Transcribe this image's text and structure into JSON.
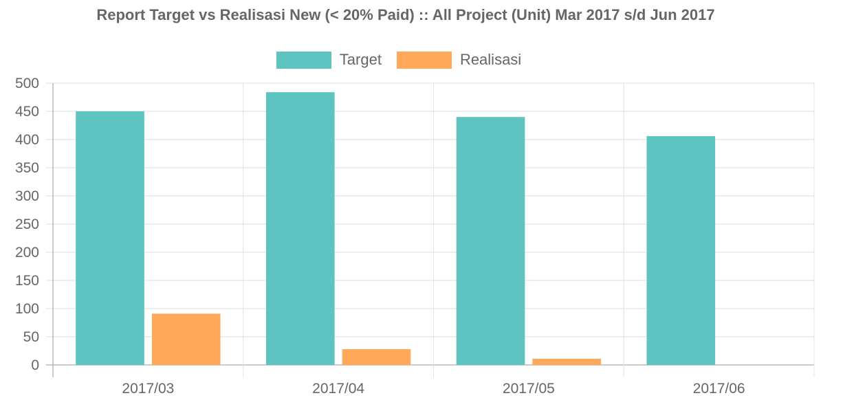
{
  "chart_data": {
    "type": "bar",
    "title": "Report Target vs Realisasi New (< 20% Paid) :: All Project (Unit) Mar 2017 s/d Jun 2017",
    "categories": [
      "2017/03",
      "2017/04",
      "2017/05",
      "2017/06"
    ],
    "series": [
      {
        "name": "Target",
        "values": [
          450,
          484,
          440,
          406
        ],
        "color": "#5ec4c1"
      },
      {
        "name": "Realisasi",
        "values": [
          91,
          28,
          11,
          0
        ],
        "color": "#ffa85a"
      }
    ],
    "ylim": [
      0,
      500
    ],
    "yticks": [
      0,
      50,
      100,
      150,
      200,
      250,
      300,
      350,
      400,
      450,
      500
    ],
    "xlabel": "",
    "ylabel": "",
    "grid": true,
    "legend_position": "top"
  }
}
